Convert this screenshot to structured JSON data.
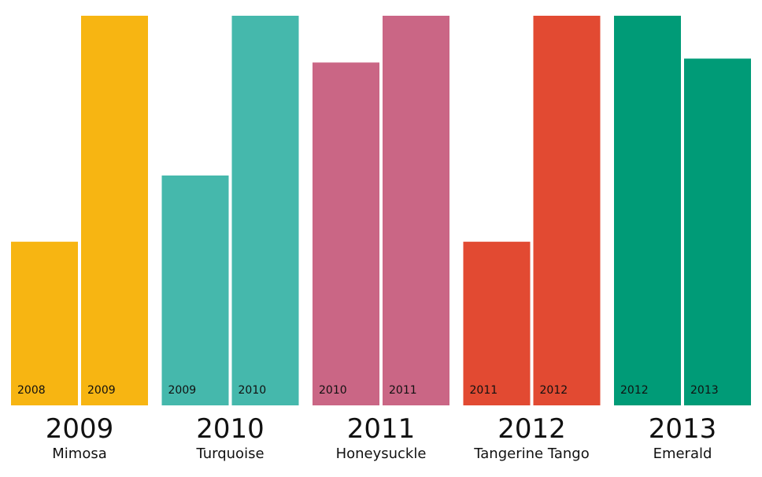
{
  "chart_data": {
    "type": "bar",
    "ylim": [
      0,
      100
    ],
    "grid": false,
    "groups": [
      {
        "year": "2009",
        "name": "Mimosa",
        "color": "#F7B512",
        "bars": [
          {
            "label": "2008",
            "value": 42
          },
          {
            "label": "2009",
            "value": 100
          }
        ]
      },
      {
        "year": "2010",
        "name": "Turquoise",
        "color": "#45B8AC",
        "bars": [
          {
            "label": "2009",
            "value": 59
          },
          {
            "label": "2010",
            "value": 100
          }
        ]
      },
      {
        "year": "2011",
        "name": "Honeysuckle",
        "color": "#CA6685",
        "bars": [
          {
            "label": "2010",
            "value": 88
          },
          {
            "label": "2011",
            "value": 100
          }
        ]
      },
      {
        "year": "2012",
        "name": "Tangerine Tango",
        "color": "#E24A32",
        "bars": [
          {
            "label": "2011",
            "value": 42
          },
          {
            "label": "2012",
            "value": 100
          }
        ]
      },
      {
        "year": "2013",
        "name": "Emerald",
        "color": "#009B77",
        "bars": [
          {
            "label": "2012",
            "value": 100
          },
          {
            "label": "2013",
            "value": 89
          }
        ]
      }
    ]
  }
}
